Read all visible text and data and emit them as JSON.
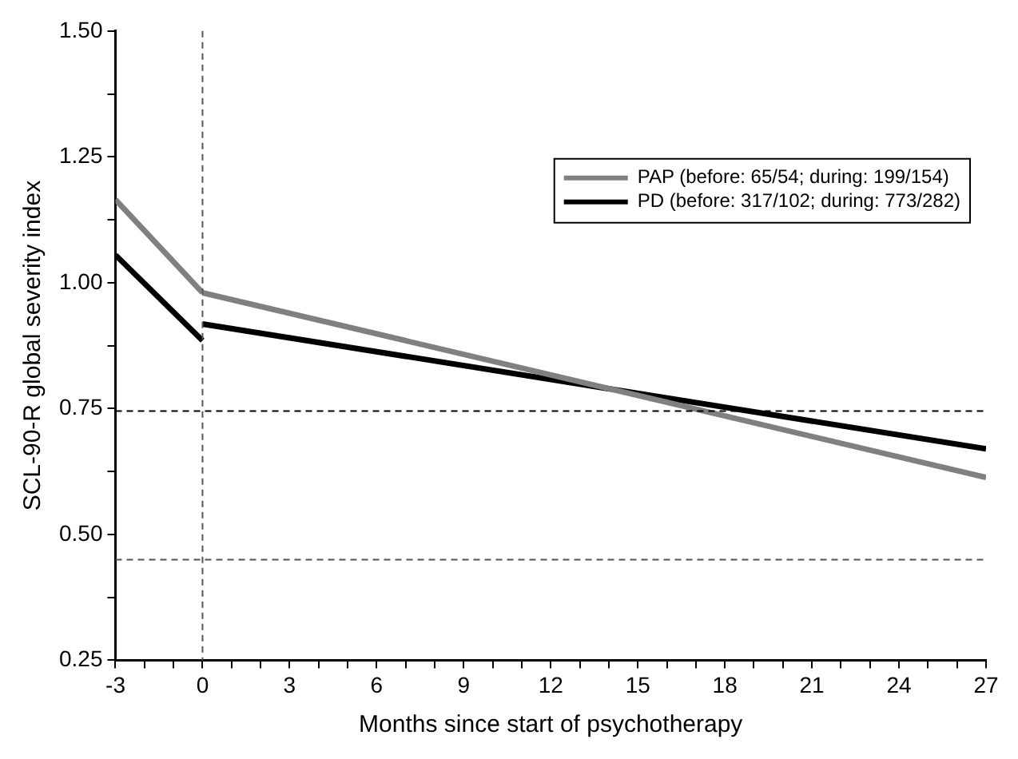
{
  "chart_data": {
    "type": "line",
    "xlabel": "Months since start of psychotherapy",
    "ylabel": "SCL-90-R global severity index",
    "x": [
      -3,
      0,
      0,
      27
    ],
    "series": [
      {
        "name": "PAP (before: 65/54; during: 199/154)",
        "color": "#808080",
        "values": [
          1.165,
          0.98,
          0.98,
          0.613
        ]
      },
      {
        "name": "PD (before: 317/102; during: 773/282)",
        "color": "#000000",
        "values": [
          1.055,
          0.885,
          0.918,
          0.67
        ]
      }
    ],
    "xlim": [
      -3,
      27
    ],
    "xticks": [
      -3,
      {
        "value": -2,
        "label": null
      },
      {
        "value": -1,
        "label": null
      },
      0,
      {
        "value": 1,
        "label": null
      },
      {
        "value": 2,
        "label": null
      },
      3,
      {
        "value": 4,
        "label": null
      },
      {
        "value": 5,
        "label": null
      },
      6,
      {
        "value": 7,
        "label": null
      },
      {
        "value": 8,
        "label": null
      },
      9,
      {
        "value": 10,
        "label": null
      },
      {
        "value": 11,
        "label": null
      },
      12,
      {
        "value": 13,
        "label": null
      },
      {
        "value": 14,
        "label": null
      },
      15,
      {
        "value": 16,
        "label": null
      },
      {
        "value": 17,
        "label": null
      },
      18,
      {
        "value": 19,
        "label": null
      },
      {
        "value": 20,
        "label": null
      },
      21,
      {
        "value": 22,
        "label": null
      },
      {
        "value": 23,
        "label": null
      },
      24,
      {
        "value": 25,
        "label": null
      },
      {
        "value": 26,
        "label": null
      },
      27
    ],
    "ylim": [
      0.25,
      1.5
    ],
    "yticks": [
      {
        "value": 0.25,
        "label": "0.25"
      },
      {
        "value": 0.375,
        "label": null
      },
      {
        "value": 0.5,
        "label": "0.50"
      },
      {
        "value": 0.625,
        "label": null
      },
      {
        "value": 0.75,
        "label": "0.75"
      },
      {
        "value": 0.875,
        "label": null
      },
      {
        "value": 1,
        "label": "1.00"
      },
      {
        "value": 1.125,
        "label": null
      },
      {
        "value": 1.25,
        "label": "1.25"
      },
      {
        "value": 1.375,
        "label": null
      },
      {
        "value": 1.5,
        "label": "1.50"
      }
    ],
    "ref_lines": [
      {
        "axis": "x",
        "value": 0,
        "color": "#555555",
        "line_style": "dashed"
      },
      {
        "axis": "y",
        "value": 0.745,
        "color": "#000000",
        "line_style": "dashed"
      },
      {
        "axis": "y",
        "value": 0.45,
        "color": "#555555",
        "line_style": "dashed"
      }
    ],
    "grid": false,
    "legend": "top right",
    "marker": "none",
    "line_style": "solid"
  }
}
